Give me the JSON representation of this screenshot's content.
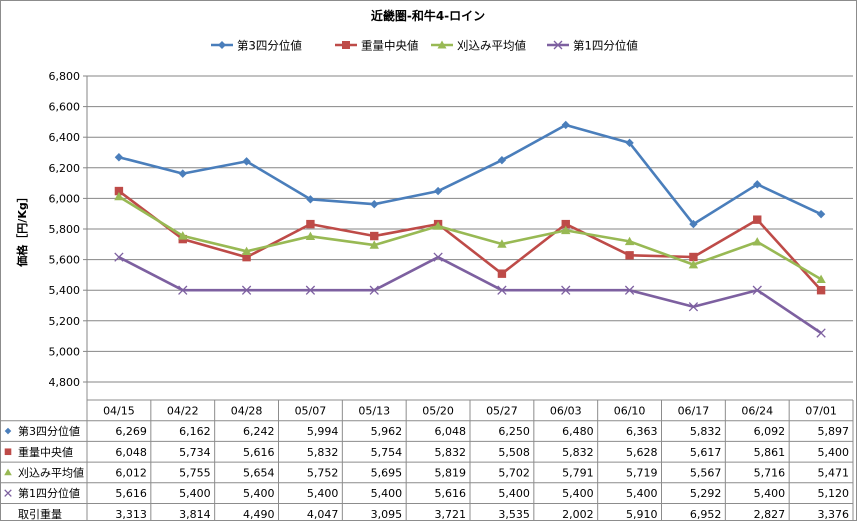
{
  "chart_data": {
    "type": "line",
    "title": "近畿圏-和牛4-ロイン",
    "ylabel": "価格［円/Kg］",
    "xlabel": "",
    "ylim": [
      4800,
      6800
    ],
    "ytick_step": 200,
    "grid": true,
    "legend_position": "top",
    "categories": [
      "04/15",
      "04/22",
      "04/28",
      "05/07",
      "05/13",
      "05/20",
      "05/27",
      "06/03",
      "06/10",
      "06/17",
      "06/24",
      "07/01"
    ],
    "series": [
      {
        "name": "第3四分位値",
        "marker": "diamond",
        "color": "#4a7ebb",
        "values": [
          6269,
          6162,
          6242,
          5994,
          5962,
          6048,
          6250,
          6480,
          6363,
          5832,
          6092,
          5897
        ],
        "labels": [
          "6,269",
          "6,162",
          "6,242",
          "5,994",
          "5,962",
          "6,048",
          "6,250",
          "6,480",
          "6,363",
          "5,832",
          "6,092",
          "5,897"
        ]
      },
      {
        "name": "重量中央値",
        "marker": "square",
        "color": "#be4b48",
        "values": [
          6048,
          5734,
          5616,
          5832,
          5754,
          5832,
          5508,
          5832,
          5628,
          5617,
          5861,
          5400
        ],
        "labels": [
          "6,048",
          "5,734",
          "5,616",
          "5,832",
          "5,754",
          "5,832",
          "5,508",
          "5,832",
          "5,628",
          "5,617",
          "5,861",
          "5,400"
        ]
      },
      {
        "name": "刈込み平均値",
        "marker": "triangle",
        "color": "#98b954",
        "values": [
          6012,
          5755,
          5654,
          5752,
          5695,
          5819,
          5702,
          5791,
          5719,
          5567,
          5716,
          5471
        ],
        "labels": [
          "6,012",
          "5,755",
          "5,654",
          "5,752",
          "5,695",
          "5,819",
          "5,702",
          "5,791",
          "5,719",
          "5,567",
          "5,716",
          "5,471"
        ]
      },
      {
        "name": "第1四分位値",
        "marker": "x",
        "color": "#7d60a0",
        "values": [
          5616,
          5400,
          5400,
          5400,
          5400,
          5616,
          5400,
          5400,
          5400,
          5292,
          5400,
          5120
        ],
        "labels": [
          "5,616",
          "5,400",
          "5,400",
          "5,400",
          "5,400",
          "5,616",
          "5,400",
          "5,400",
          "5,400",
          "5,292",
          "5,400",
          "5,120"
        ]
      }
    ],
    "extra_row": {
      "name": "取引重量",
      "labels": [
        "3,313",
        "3,814",
        "4,490",
        "4,047",
        "3,095",
        "3,721",
        "3,535",
        "2,002",
        "5,910",
        "6,952",
        "2,827",
        "3,376"
      ]
    }
  }
}
